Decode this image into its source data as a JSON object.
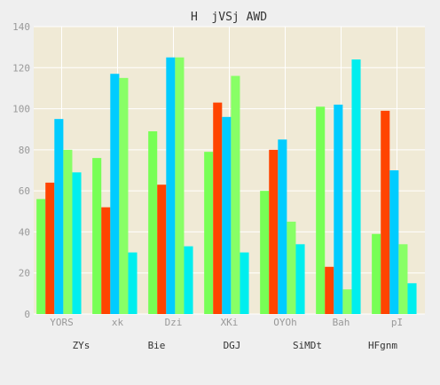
{
  "chart_data": {
    "type": "bar",
    "title": "H  jVSj AWD",
    "categories": [
      "YORS",
      "xk",
      "Dzi",
      "XKi",
      "OYOh",
      "Bah",
      "pI"
    ],
    "group_labels": [
      "ZYs",
      "Bie",
      "DGJ",
      "SiMDt",
      "HFgnm"
    ],
    "series": [
      {
        "color": "#77ff55",
        "values": [
          56,
          76,
          89,
          79,
          60,
          101,
          39
        ]
      },
      {
        "color": "#ff4400",
        "values": [
          64,
          52,
          63,
          103,
          80,
          23,
          99
        ]
      },
      {
        "color": "#00ccff",
        "values": [
          95,
          117,
          125,
          96,
          85,
          102,
          70
        ]
      },
      {
        "color": "#88ff66",
        "values": [
          80,
          115,
          125,
          116,
          45,
          12,
          34
        ]
      },
      {
        "color": "#00eeee",
        "values": [
          69,
          30,
          33,
          30,
          34,
          124,
          15
        ]
      }
    ],
    "ylim": [
      0,
      140
    ],
    "yticks": [
      0,
      20,
      40,
      60,
      80,
      100,
      120,
      140
    ],
    "grid": true,
    "plot_background": "#f0ead6",
    "grid_color": "#ffffff"
  }
}
